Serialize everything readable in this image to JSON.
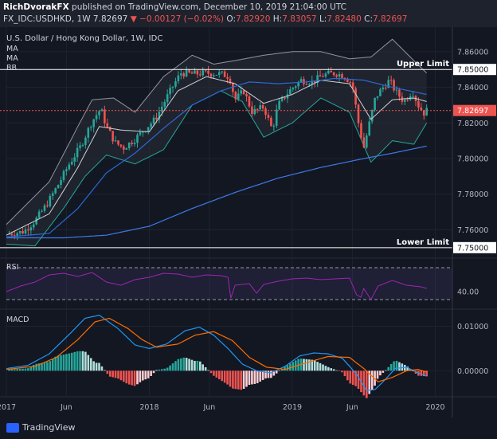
{
  "header": {
    "author": "RichDvorakFX",
    "published": "published on TradingView.com, December 10, 2019 21:04:00 UTC",
    "symbol_line": "FX_IDC:USDHKD, 1W",
    "last": "7.82697",
    "change": "−0.00127 (−0.02%)",
    "ohlc_o_label": "O:",
    "ohlc_o": "7.82920",
    "ohlc_h_label": "H:",
    "ohlc_h": "7.83057",
    "ohlc_l_label": "L:",
    "ohlc_l": "7.82480",
    "ohlc_c_label": "C:",
    "ohlc_c": "7.82697"
  },
  "chart_data": [
    {
      "type": "candlestick",
      "title": "U.S. Dollar / Hong Kong Dollar, 1W, IDC",
      "indicators": [
        "MA",
        "MA",
        "BB"
      ],
      "x_ticks": [
        "2017",
        "Jun",
        "2018",
        "Jun",
        "2019",
        "Jun",
        "2020"
      ],
      "y_ticks": [
        "7.86000",
        "7.84000",
        "7.82000",
        "7.80000",
        "7.78000",
        "7.76000"
      ],
      "ylim": [
        7.745,
        7.872
      ],
      "levels": [
        {
          "name": "Upper Limit",
          "value": 7.85,
          "label": "7.85000"
        },
        {
          "name": "Lower Limit",
          "value": 7.75,
          "label": "7.75000"
        }
      ],
      "last_price": {
        "value": 7.82697,
        "label": "7.82697"
      },
      "close_path": [
        [
          2017.0,
          7.7575
        ],
        [
          2017.12,
          7.759
        ],
        [
          2017.2,
          7.765
        ],
        [
          2017.28,
          7.774
        ],
        [
          2017.36,
          7.785
        ],
        [
          2017.44,
          7.797
        ],
        [
          2017.52,
          7.807
        ],
        [
          2017.6,
          7.821
        ],
        [
          2017.66,
          7.828
        ],
        [
          2017.7,
          7.818
        ],
        [
          2017.76,
          7.809
        ],
        [
          2017.82,
          7.806
        ],
        [
          2017.9,
          7.811
        ],
        [
          2017.96,
          7.816
        ],
        [
          2018.04,
          7.822
        ],
        [
          2018.1,
          7.831
        ],
        [
          2018.16,
          7.84
        ],
        [
          2018.22,
          7.848
        ],
        [
          2018.3,
          7.8475
        ],
        [
          2018.4,
          7.848
        ],
        [
          2018.5,
          7.8475
        ],
        [
          2018.56,
          7.846
        ],
        [
          2018.6,
          7.833
        ],
        [
          2018.66,
          7.838
        ],
        [
          2018.72,
          7.826
        ],
        [
          2018.8,
          7.829
        ],
        [
          2018.86,
          7.816
        ],
        [
          2018.9,
          7.83
        ],
        [
          2018.98,
          7.838
        ],
        [
          2019.06,
          7.844
        ],
        [
          2019.14,
          7.843
        ],
        [
          2019.22,
          7.847
        ],
        [
          2019.3,
          7.848
        ],
        [
          2019.36,
          7.8465
        ],
        [
          2019.42,
          7.842
        ],
        [
          2019.46,
          7.821
        ],
        [
          2019.5,
          7.806
        ],
        [
          2019.54,
          7.82
        ],
        [
          2019.58,
          7.834
        ],
        [
          2019.62,
          7.8385
        ],
        [
          2019.68,
          7.844
        ],
        [
          2019.72,
          7.838
        ],
        [
          2019.78,
          7.832
        ],
        [
          2019.84,
          7.838
        ],
        [
          2019.88,
          7.83
        ],
        [
          2019.92,
          7.8255
        ],
        [
          2019.94,
          7.82697
        ]
      ],
      "upper_band": [
        [
          2017.0,
          7.763
        ],
        [
          2017.3,
          7.787
        ],
        [
          2017.5,
          7.818
        ],
        [
          2017.6,
          7.833
        ],
        [
          2017.75,
          7.834
        ],
        [
          2017.9,
          7.826
        ],
        [
          2018.1,
          7.846
        ],
        [
          2018.3,
          7.858
        ],
        [
          2018.45,
          7.853
        ],
        [
          2018.6,
          7.855
        ],
        [
          2018.8,
          7.858
        ],
        [
          2019.0,
          7.86
        ],
        [
          2019.2,
          7.86
        ],
        [
          2019.4,
          7.856
        ],
        [
          2019.55,
          7.857
        ],
        [
          2019.7,
          7.867
        ],
        [
          2019.85,
          7.855
        ],
        [
          2019.94,
          7.848
        ]
      ],
      "lower_band": [
        [
          2017.0,
          7.752
        ],
        [
          2017.2,
          7.751
        ],
        [
          2017.4,
          7.772
        ],
        [
          2017.55,
          7.79
        ],
        [
          2017.7,
          7.802
        ],
        [
          2017.9,
          7.797
        ],
        [
          2018.1,
          7.805
        ],
        [
          2018.3,
          7.83
        ],
        [
          2018.5,
          7.838
        ],
        [
          2018.65,
          7.832
        ],
        [
          2018.8,
          7.812
        ],
        [
          2019.0,
          7.82
        ],
        [
          2019.2,
          7.834
        ],
        [
          2019.4,
          7.826
        ],
        [
          2019.55,
          7.798
        ],
        [
          2019.7,
          7.81
        ],
        [
          2019.85,
          7.808
        ],
        [
          2019.94,
          7.82
        ]
      ],
      "ma_fast": [
        [
          2017.0,
          7.757
        ],
        [
          2017.3,
          7.769
        ],
        [
          2017.5,
          7.795
        ],
        [
          2017.65,
          7.818
        ],
        [
          2017.8,
          7.816
        ],
        [
          2018.0,
          7.815
        ],
        [
          2018.2,
          7.838
        ],
        [
          2018.4,
          7.846
        ],
        [
          2018.6,
          7.842
        ],
        [
          2018.8,
          7.831
        ],
        [
          2019.0,
          7.836
        ],
        [
          2019.2,
          7.844
        ],
        [
          2019.4,
          7.842
        ],
        [
          2019.55,
          7.822
        ],
        [
          2019.7,
          7.833
        ],
        [
          2019.85,
          7.834
        ],
        [
          2019.94,
          7.832
        ]
      ],
      "ma_slow": [
        [
          2017.0,
          7.756
        ],
        [
          2017.3,
          7.758
        ],
        [
          2017.5,
          7.772
        ],
        [
          2017.7,
          7.792
        ],
        [
          2017.9,
          7.803
        ],
        [
          2018.1,
          7.817
        ],
        [
          2018.3,
          7.83
        ],
        [
          2018.5,
          7.838
        ],
        [
          2018.7,
          7.843
        ],
        [
          2018.9,
          7.842
        ],
        [
          2019.1,
          7.843
        ],
        [
          2019.3,
          7.845
        ],
        [
          2019.5,
          7.844
        ],
        [
          2019.7,
          7.84
        ],
        [
          2019.94,
          7.836
        ]
      ],
      "ma_long": [
        [
          2017.0,
          7.7555
        ],
        [
          2017.4,
          7.7555
        ],
        [
          2017.7,
          7.757
        ],
        [
          2018.0,
          7.762
        ],
        [
          2018.3,
          7.772
        ],
        [
          2018.6,
          7.781
        ],
        [
          2018.9,
          7.789
        ],
        [
          2019.2,
          7.795
        ],
        [
          2019.5,
          7.8
        ],
        [
          2019.7,
          7.803
        ],
        [
          2019.94,
          7.807
        ]
      ]
    },
    {
      "type": "line",
      "title": "RSI",
      "y_ticks": [
        "40.00"
      ],
      "ylim": [
        20,
        80
      ],
      "bands": [
        30,
        70
      ],
      "values": [
        [
          2017.0,
          40
        ],
        [
          2017.1,
          47
        ],
        [
          2017.2,
          52
        ],
        [
          2017.3,
          61
        ],
        [
          2017.4,
          63
        ],
        [
          2017.5,
          59
        ],
        [
          2017.6,
          64
        ],
        [
          2017.7,
          52
        ],
        [
          2017.8,
          48
        ],
        [
          2017.9,
          55
        ],
        [
          2018.0,
          58
        ],
        [
          2018.1,
          63
        ],
        [
          2018.2,
          62
        ],
        [
          2018.3,
          58
        ],
        [
          2018.4,
          61
        ],
        [
          2018.5,
          60
        ],
        [
          2018.55,
          58
        ],
        [
          2018.57,
          32
        ],
        [
          2018.6,
          48
        ],
        [
          2018.7,
          50
        ],
        [
          2018.75,
          38
        ],
        [
          2018.8,
          49
        ],
        [
          2018.9,
          53
        ],
        [
          2019.0,
          56
        ],
        [
          2019.1,
          57
        ],
        [
          2019.2,
          55
        ],
        [
          2019.3,
          56
        ],
        [
          2019.4,
          57
        ],
        [
          2019.45,
          36
        ],
        [
          2019.48,
          33
        ],
        [
          2019.5,
          44
        ],
        [
          2019.55,
          30
        ],
        [
          2019.6,
          47
        ],
        [
          2019.7,
          54
        ],
        [
          2019.8,
          48
        ],
        [
          2019.9,
          46
        ],
        [
          2019.94,
          44
        ]
      ]
    },
    {
      "type": "bar",
      "title": "MACD",
      "y_ticks": [
        "0.01000",
        "0.00000"
      ],
      "ylim": [
        -0.0055,
        0.0135
      ],
      "macd": [
        [
          2017.0,
          0.0005
        ],
        [
          2017.15,
          0.0012
        ],
        [
          2017.3,
          0.0038
        ],
        [
          2017.45,
          0.0085
        ],
        [
          2017.55,
          0.0118
        ],
        [
          2017.65,
          0.0125
        ],
        [
          2017.78,
          0.0095
        ],
        [
          2017.9,
          0.0058
        ],
        [
          2018.0,
          0.005
        ],
        [
          2018.12,
          0.006
        ],
        [
          2018.25,
          0.009
        ],
        [
          2018.35,
          0.0098
        ],
        [
          2018.45,
          0.008
        ],
        [
          2018.55,
          0.005
        ],
        [
          2018.65,
          0.0015
        ],
        [
          2018.75,
          0.0
        ],
        [
          2018.85,
          -0.0005
        ],
        [
          2018.95,
          0.001
        ],
        [
          2019.05,
          0.0033
        ],
        [
          2019.15,
          0.004
        ],
        [
          2019.25,
          0.0038
        ],
        [
          2019.35,
          0.0028
        ],
        [
          2019.45,
          -0.0008
        ],
        [
          2019.52,
          -0.0045
        ],
        [
          2019.58,
          -0.0042
        ],
        [
          2019.65,
          -0.002
        ],
        [
          2019.72,
          0.0005
        ],
        [
          2019.8,
          0.0008
        ],
        [
          2019.88,
          -0.0005
        ],
        [
          2019.94,
          -0.0012
        ]
      ],
      "signal": [
        [
          2017.0,
          0.0003
        ],
        [
          2017.2,
          0.001
        ],
        [
          2017.35,
          0.003
        ],
        [
          2017.5,
          0.007
        ],
        [
          2017.62,
          0.011
        ],
        [
          2017.72,
          0.0118
        ],
        [
          2017.85,
          0.0095
        ],
        [
          2017.95,
          0.007
        ],
        [
          2018.05,
          0.0053
        ],
        [
          2018.2,
          0.006
        ],
        [
          2018.32,
          0.008
        ],
        [
          2018.45,
          0.0088
        ],
        [
          2018.58,
          0.0068
        ],
        [
          2018.7,
          0.003
        ],
        [
          2018.82,
          0.0008
        ],
        [
          2018.95,
          0.0003
        ],
        [
          2019.1,
          0.0018
        ],
        [
          2019.25,
          0.0032
        ],
        [
          2019.4,
          0.003
        ],
        [
          2019.5,
          0.0005
        ],
        [
          2019.6,
          -0.0025
        ],
        [
          2019.7,
          -0.0015
        ],
        [
          2019.8,
          0.0
        ],
        [
          2019.88,
          0.0003
        ],
        [
          2019.94,
          -0.0003
        ]
      ]
    }
  ]
}
